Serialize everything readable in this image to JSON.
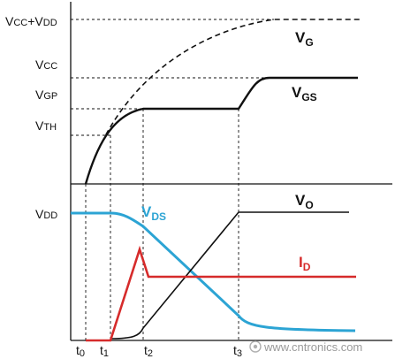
{
  "upper": {
    "y_ticks": {
      "vcc_vdd": {
        "main": "V",
        "sub": "CC",
        "plus": "+V",
        "sub2": "DD"
      },
      "vcc": {
        "main": "V",
        "sub": "CC"
      },
      "vgp": {
        "main": "V",
        "sub": "GP"
      },
      "vth": {
        "main": "V",
        "sub": "TH"
      }
    },
    "curve_labels": {
      "vg": {
        "main": "V",
        "sub": "G"
      },
      "vgs": {
        "main": "V",
        "sub": "GS"
      }
    }
  },
  "lower": {
    "y_ticks": {
      "vdd": {
        "main": "V",
        "sub": "DD"
      }
    },
    "curve_labels": {
      "vds": {
        "main": "V",
        "sub": "DS"
      },
      "vo": {
        "main": "V",
        "sub": "O"
      },
      "id": {
        "main": "I",
        "sub": "D"
      }
    }
  },
  "time_ticks": [
    {
      "id": "t0",
      "main": "t",
      "sub": "0"
    },
    {
      "id": "t1",
      "main": "t",
      "sub": "1"
    },
    {
      "id": "t2",
      "main": "t",
      "sub": "2"
    },
    {
      "id": "t3",
      "main": "t",
      "sub": "3"
    }
  ],
  "colors": {
    "axis": "#111111",
    "vds": "#2ca4d4",
    "id": "#d62b2b",
    "black_curve": "#111111"
  },
  "watermark": {
    "text": "www.cntronics.com"
  }
}
